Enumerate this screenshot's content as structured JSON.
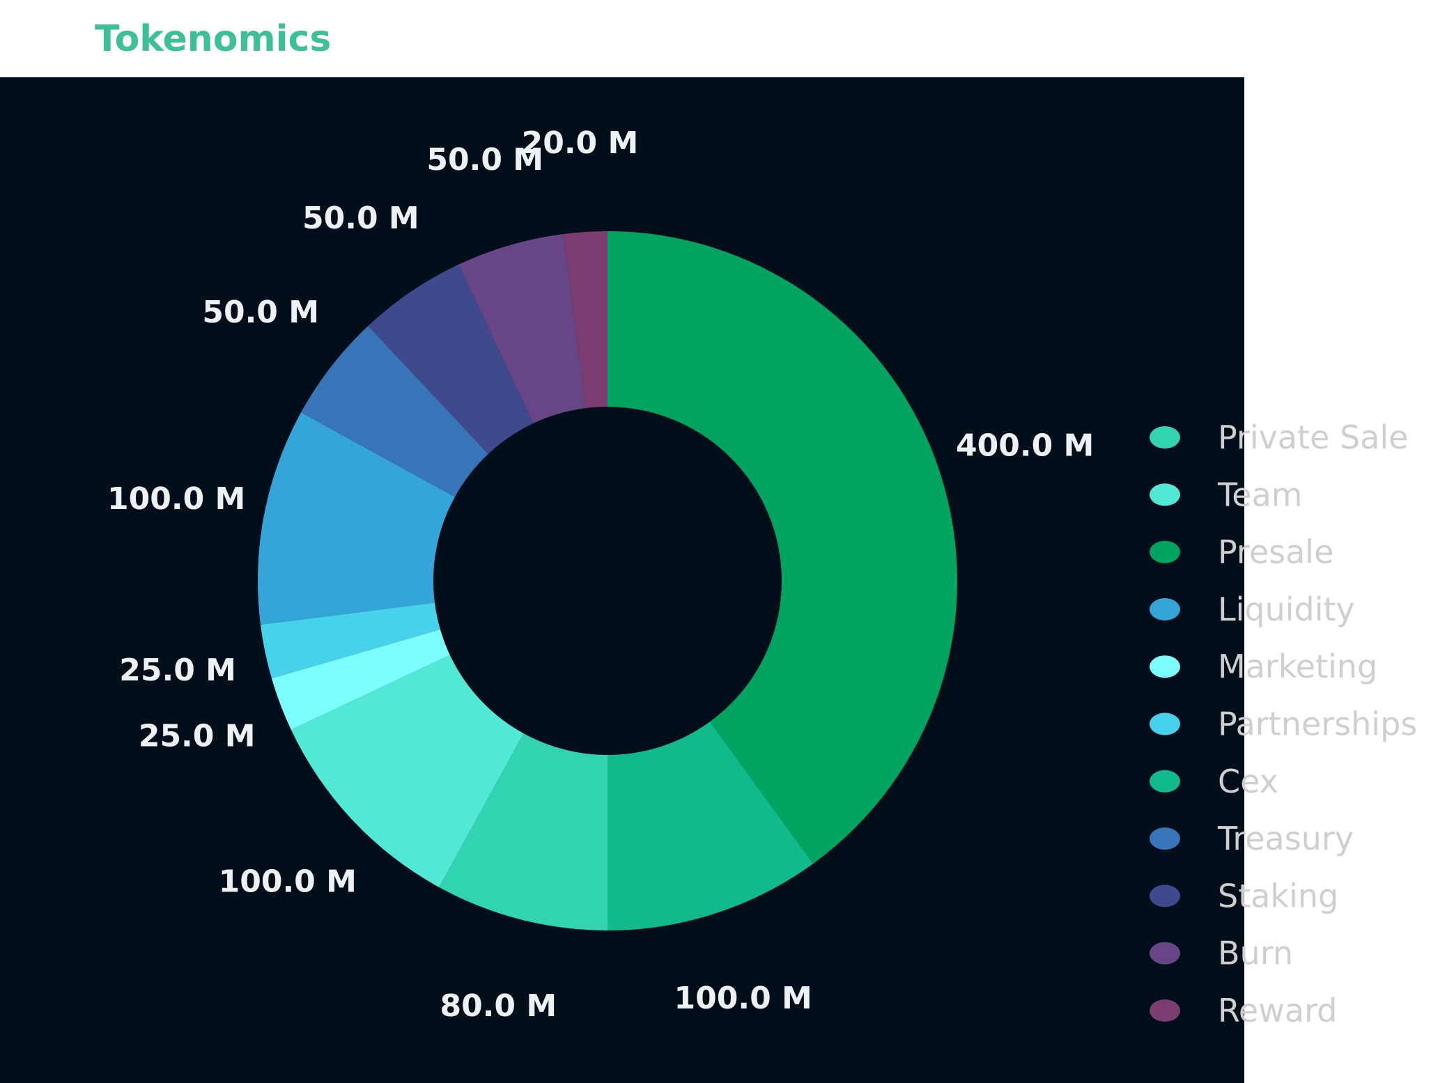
{
  "header": {
    "title": "Tokenomics"
  },
  "colors": {
    "title": "#3dbf97",
    "panel_background": "#020f1b",
    "data_label": "#eef1f4",
    "legend_text": "#cfcfcf"
  },
  "chart_data": {
    "type": "pie",
    "subtype": "donut",
    "title": "",
    "legend_position": "right",
    "slices": [
      {
        "name": "Presale",
        "value": 400,
        "label": "400.0 M",
        "color": "#00a35f"
      },
      {
        "name": "Cex",
        "value": 100,
        "label": "100.0 M",
        "color": "#10ba8a"
      },
      {
        "name": "Private Sale",
        "value": 80,
        "label": "80.0 M",
        "color": "#31d3b1"
      },
      {
        "name": "Team",
        "value": 100,
        "label": "100.0 M",
        "color": "#52e8d6"
      },
      {
        "name": "Marketing",
        "value": 25,
        "label": "25.0 M",
        "color": "#7cfefe"
      },
      {
        "name": "Partnerships",
        "value": 25,
        "label": "25.0 M",
        "color": "#48d1ea"
      },
      {
        "name": "Liquidity",
        "value": 100,
        "label": "100.0 M",
        "color": "#35a5d9"
      },
      {
        "name": "Treasury",
        "value": 50,
        "label": "50.0 M",
        "color": "#3874b8"
      },
      {
        "name": " Staking",
        "value": 50,
        "label": "50.0 M",
        "color": "#3f4a8c"
      },
      {
        "name": "Burn",
        "value": 50,
        "label": "50.0 M",
        "color": "#684585"
      },
      {
        "name": "Reward",
        "value": 20,
        "label": "20.0 M",
        "color": "#7c3d73"
      }
    ],
    "legend": [
      {
        "name": "Private Sale",
        "color": "#31d3b1"
      },
      {
        "name": "Team",
        "color": "#52e8d6"
      },
      {
        "name": "Presale",
        "color": "#00a35f"
      },
      {
        "name": "Liquidity",
        "color": "#35a5d9"
      },
      {
        "name": "Marketing",
        "color": "#7cfefe"
      },
      {
        "name": "Partnerships",
        "color": "#48d1ea"
      },
      {
        "name": "Cex",
        "color": "#10ba8a"
      },
      {
        "name": "Treasury",
        "color": "#3874b8"
      },
      {
        "name": " Staking",
        "color": "#3f4a8c"
      },
      {
        "name": "Burn",
        "color": "#684585"
      },
      {
        "name": "Reward",
        "color": "#7c3d73"
      }
    ]
  }
}
